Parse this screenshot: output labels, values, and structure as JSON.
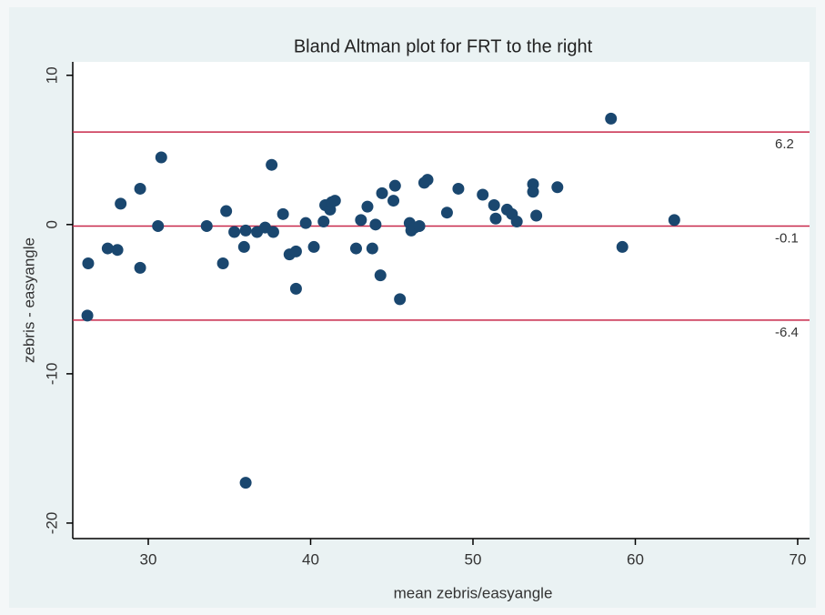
{
  "chart_data": {
    "type": "scatter",
    "title": "Bland Altman plot for FRT to the right",
    "x_label": "mean zebris/easyangle",
    "y_label": "zebris - easyangle",
    "xlim": [
      25.35,
      70.73
    ],
    "ylim": [
      -21.04,
      10.9
    ],
    "xticks": [
      30,
      40,
      50,
      60,
      70
    ],
    "yticks": [
      10,
      0,
      -10,
      -20
    ],
    "hlines": [
      6.2,
      -0.1,
      -6.4
    ],
    "color": "#1a476f",
    "line_color": "#c8284a",
    "x": [
      26.25,
      26.3,
      27.5,
      28.1,
      28.3,
      29.5,
      29.5,
      30.6,
      30.8,
      33.6,
      34.6,
      34.8,
      35.3,
      35.9,
      36.0,
      36.0,
      36.7,
      37.2,
      37.6,
      37.7,
      38.3,
      38.7,
      39.1,
      39.1,
      39.7,
      40.2,
      40.8,
      40.9,
      41.2,
      41.3,
      41.5,
      42.8,
      43.1,
      43.5,
      43.8,
      44.0,
      44.3,
      44.4,
      45.1,
      45.2,
      45.5,
      46.1,
      46.2,
      46.4,
      46.7,
      47.0,
      47.2,
      48.4,
      49.1,
      50.6,
      51.3,
      51.4,
      52.1,
      52.4,
      52.7,
      53.7,
      53.7,
      53.9,
      55.2,
      58.5,
      59.2,
      62.4
    ],
    "values": [
      -6.1,
      -2.6,
      -1.6,
      -1.7,
      1.4,
      2.4,
      -2.9,
      -0.1,
      4.5,
      -0.1,
      -2.6,
      0.9,
      -0.5,
      -1.5,
      -0.4,
      -17.3,
      -0.5,
      -0.2,
      4.0,
      -0.5,
      0.7,
      -2.0,
      -1.8,
      -4.3,
      0.1,
      -1.5,
      0.2,
      1.3,
      1.0,
      1.5,
      1.6,
      -1.6,
      0.3,
      1.2,
      -1.6,
      0.0,
      -3.4,
      2.1,
      1.6,
      2.6,
      -5.0,
      0.1,
      -0.4,
      -0.2,
      -0.1,
      2.8,
      3.0,
      0.8,
      2.4,
      2.0,
      1.3,
      0.4,
      1.0,
      0.7,
      0.2,
      2.7,
      2.2,
      0.6,
      2.5,
      7.1,
      -1.5,
      0.3
    ]
  }
}
